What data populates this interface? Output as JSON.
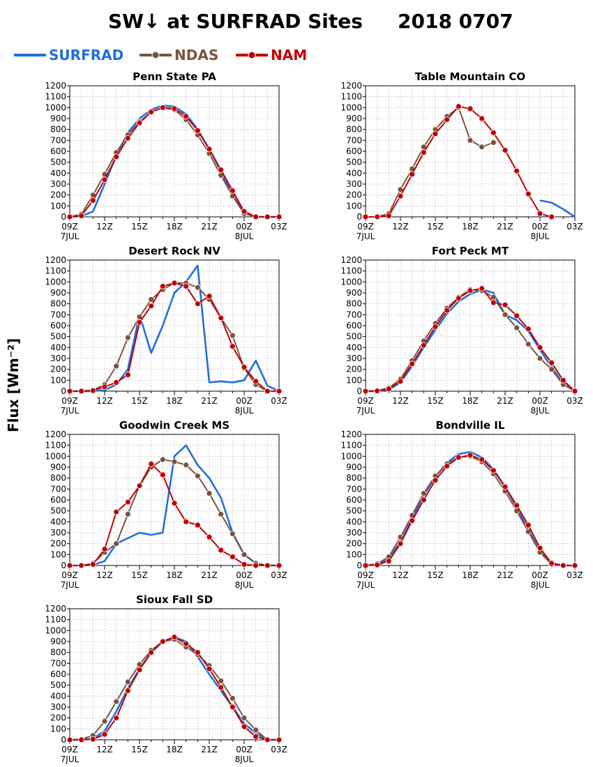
{
  "figure": {
    "title": "SW↓ at SURFRAD Sites",
    "date": "2018 0707",
    "ylabel": "Flux [Wm⁻²]"
  },
  "legend": [
    {
      "name": "SURFRAD",
      "color": "#1f6fe0",
      "marker": false
    },
    {
      "name": "NDAS",
      "color": "#7a5340",
      "marker": true
    },
    {
      "name": "NAM",
      "color": "#c00000",
      "marker": true
    }
  ],
  "chart_data": [
    {
      "type": "line",
      "title": "Penn State PA",
      "x": [
        9,
        10,
        11,
        12,
        13,
        14,
        15,
        16,
        17,
        18,
        19,
        20,
        21,
        22,
        23,
        24,
        25,
        26,
        27
      ],
      "ylim": [
        0,
        1200
      ],
      "series": [
        {
          "name": "SURFRAD",
          "color": "#1f6fe0",
          "values": [
            0,
            5,
            50,
            300,
            560,
            770,
            900,
            980,
            1020,
            1010,
            940,
            800,
            620,
            420,
            200,
            40,
            0,
            0,
            0
          ]
        },
        {
          "name": "NDAS",
          "color": "#7a5340",
          "values": [
            0,
            25,
            200,
            390,
            590,
            750,
            870,
            960,
            1000,
            980,
            890,
            750,
            580,
            380,
            190,
            30,
            0,
            0,
            0
          ]
        },
        {
          "name": "NAM",
          "color": "#c00000",
          "values": [
            0,
            10,
            150,
            340,
            550,
            720,
            860,
            960,
            1000,
            990,
            920,
            790,
            620,
            430,
            240,
            50,
            0,
            0,
            0
          ]
        }
      ]
    },
    {
      "type": "line",
      "title": "Table Mountain CO",
      "x": [
        9,
        10,
        11,
        12,
        13,
        14,
        15,
        16,
        17,
        18,
        19,
        20,
        21,
        22,
        23,
        24,
        25,
        26,
        27
      ],
      "ylim": [
        0,
        1200
      ],
      "series": [
        {
          "name": "SURFRAD",
          "color": "#1f6fe0",
          "values": [
            null,
            null,
            null,
            null,
            null,
            null,
            null,
            null,
            null,
            null,
            null,
            null,
            null,
            null,
            null,
            150,
            130,
            70,
            0
          ]
        },
        {
          "name": "NDAS",
          "color": "#7a5340",
          "values": [
            0,
            0,
            30,
            250,
            440,
            640,
            800,
            920,
            1000,
            700,
            640,
            680,
            null,
            null,
            null,
            null,
            null,
            null,
            null
          ]
        },
        {
          "name": "NAM",
          "color": "#c00000",
          "values": [
            0,
            0,
            10,
            190,
            390,
            590,
            760,
            890,
            1010,
            990,
            900,
            770,
            610,
            420,
            210,
            30,
            0,
            null,
            null
          ]
        }
      ]
    },
    {
      "type": "line",
      "title": "Desert Rock NV",
      "x": [
        9,
        10,
        11,
        12,
        13,
        14,
        15,
        16,
        17,
        18,
        19,
        20,
        21,
        22,
        23,
        24,
        25,
        26,
        27
      ],
      "ylim": [
        0,
        1200
      ],
      "series": [
        {
          "name": "SURFRAD",
          "color": "#1f6fe0",
          "values": [
            0,
            0,
            0,
            10,
            60,
            200,
            700,
            350,
            600,
            900,
            1000,
            1150,
            80,
            90,
            80,
            100,
            280,
            50,
            0
          ]
        },
        {
          "name": "NDAS",
          "color": "#7a5340",
          "values": [
            0,
            0,
            10,
            60,
            230,
            490,
            680,
            840,
            930,
            990,
            990,
            950,
            840,
            670,
            510,
            210,
            60,
            0,
            0
          ]
        },
        {
          "name": "NAM",
          "color": "#c00000",
          "values": [
            0,
            0,
            5,
            40,
            80,
            150,
            630,
            780,
            960,
            990,
            960,
            800,
            870,
            670,
            410,
            220,
            90,
            0,
            0
          ]
        }
      ]
    },
    {
      "type": "line",
      "title": "Fort Peck MT",
      "x": [
        9,
        10,
        11,
        12,
        13,
        14,
        15,
        16,
        17,
        18,
        19,
        20,
        21,
        22,
        23,
        24,
        25,
        26,
        27
      ],
      "ylim": [
        0,
        1200
      ],
      "series": [
        {
          "name": "SURFRAD",
          "color": "#1f6fe0",
          "values": [
            0,
            0,
            15,
            80,
            230,
            400,
            560,
            710,
            820,
            890,
            930,
            900,
            700,
            650,
            550,
            380,
            220,
            70,
            0
          ]
        },
        {
          "name": "NDAS",
          "color": "#7a5340",
          "values": [
            0,
            5,
            30,
            110,
            280,
            460,
            620,
            760,
            860,
            930,
            920,
            860,
            700,
            580,
            430,
            300,
            200,
            60,
            0
          ]
        },
        {
          "name": "NAM",
          "color": "#c00000",
          "values": [
            0,
            2,
            20,
            90,
            250,
            420,
            590,
            740,
            850,
            920,
            940,
            810,
            790,
            690,
            570,
            400,
            260,
            100,
            0
          ]
        }
      ]
    },
    {
      "type": "line",
      "title": "Goodwin Creek MS",
      "x": [
        9,
        10,
        11,
        12,
        13,
        14,
        15,
        16,
        17,
        18,
        19,
        20,
        21,
        22,
        23,
        24,
        25,
        26,
        27
      ],
      "ylim": [
        0,
        1200
      ],
      "series": [
        {
          "name": "SURFRAD",
          "color": "#1f6fe0",
          "values": [
            0,
            0,
            5,
            40,
            200,
            250,
            300,
            280,
            300,
            1000,
            1100,
            920,
            800,
            620,
            300,
            100,
            20,
            0,
            0
          ]
        },
        {
          "name": "NDAS",
          "color": "#7a5340",
          "values": [
            0,
            0,
            20,
            120,
            200,
            470,
            730,
            900,
            970,
            950,
            920,
            820,
            660,
            470,
            290,
            100,
            20,
            0,
            0
          ]
        },
        {
          "name": "NAM",
          "color": "#c00000",
          "values": [
            0,
            0,
            10,
            150,
            490,
            580,
            730,
            930,
            830,
            570,
            400,
            370,
            260,
            140,
            80,
            10,
            0,
            0,
            0
          ]
        }
      ]
    },
    {
      "type": "line",
      "title": "Bondville IL",
      "x": [
        9,
        10,
        11,
        12,
        13,
        14,
        15,
        16,
        17,
        18,
        19,
        20,
        21,
        22,
        23,
        24,
        25,
        26,
        27
      ],
      "ylim": [
        0,
        1200
      ],
      "series": [
        {
          "name": "SURFRAD",
          "color": "#1f6fe0",
          "values": [
            0,
            10,
            60,
            220,
            430,
            640,
            810,
            940,
            1020,
            1040,
            990,
            880,
            720,
            530,
            330,
            130,
            20,
            0,
            0
          ]
        },
        {
          "name": "NDAS",
          "color": "#7a5340",
          "values": [
            0,
            15,
            80,
            260,
            460,
            660,
            820,
            930,
            990,
            1000,
            950,
            840,
            680,
            500,
            310,
            120,
            10,
            0,
            0
          ]
        },
        {
          "name": "NAM",
          "color": "#c00000",
          "values": [
            0,
            5,
            40,
            200,
            410,
            600,
            780,
            910,
            990,
            1010,
            970,
            870,
            720,
            550,
            370,
            160,
            20,
            0,
            0
          ]
        }
      ]
    },
    {
      "type": "line",
      "title": "Sioux Fall SD",
      "x": [
        9,
        10,
        11,
        12,
        13,
        14,
        15,
        16,
        17,
        18,
        19,
        20,
        21,
        22,
        23,
        24,
        25,
        26,
        27
      ],
      "ylim": [
        0,
        1200
      ],
      "series": [
        {
          "name": "SURFRAD",
          "color": "#1f6fe0",
          "values": [
            0,
            0,
            10,
            80,
            260,
            470,
            650,
            800,
            900,
            940,
            900,
            760,
            600,
            450,
            300,
            150,
            60,
            0,
            0
          ]
        },
        {
          "name": "NDAS",
          "color": "#7a5340",
          "values": [
            0,
            5,
            40,
            170,
            350,
            530,
            690,
            820,
            900,
            920,
            850,
            780,
            680,
            540,
            380,
            200,
            90,
            0,
            0
          ]
        },
        {
          "name": "NAM",
          "color": "#c00000",
          "values": [
            0,
            0,
            5,
            50,
            200,
            450,
            640,
            800,
            900,
            940,
            880,
            800,
            650,
            480,
            300,
            120,
            30,
            0,
            0
          ]
        }
      ]
    }
  ],
  "axes": {
    "y_ticks": [
      0,
      100,
      200,
      300,
      400,
      500,
      600,
      700,
      800,
      900,
      1000,
      1100,
      1200
    ],
    "x_ticks": [
      9,
      12,
      15,
      18,
      21,
      24,
      27
    ],
    "x_tick_labels": [
      "09Z",
      "12Z",
      "15Z",
      "18Z",
      "21Z",
      "00Z",
      "03Z"
    ],
    "date_labels": [
      {
        "x": 9,
        "label": "7JUL"
      },
      {
        "x": 24,
        "label": "8JUL"
      }
    ],
    "x_range": [
      9,
      27
    ],
    "grid": true
  }
}
